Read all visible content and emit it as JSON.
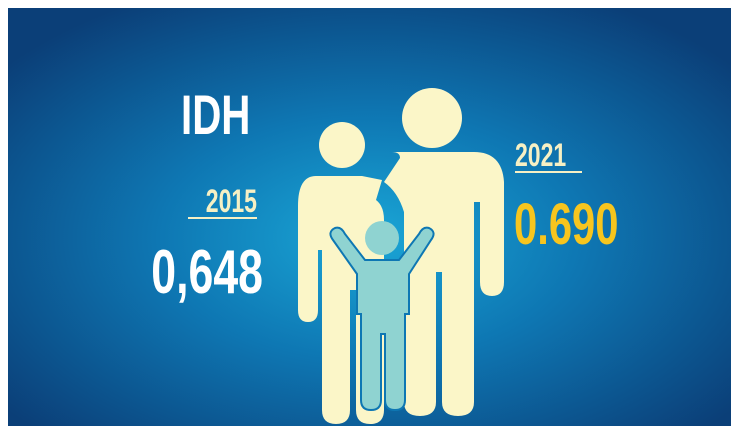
{
  "title": "IDH",
  "left": {
    "year": "2015",
    "value": "0,648"
  },
  "right": {
    "year": "2021",
    "value": "0.690"
  }
}
